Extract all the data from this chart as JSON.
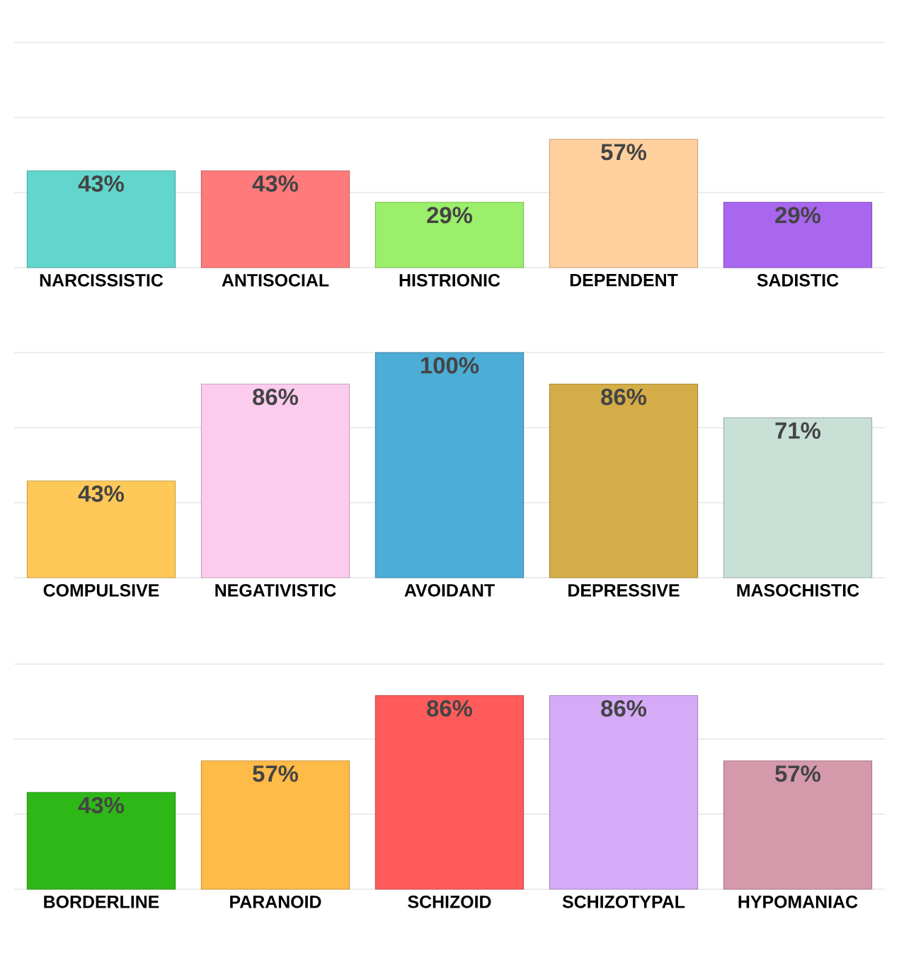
{
  "chart_data": [
    {
      "type": "bar",
      "categories": [
        "NARCISSISTIC",
        "ANTISOCIAL",
        "HISTRIONIC",
        "DEPENDENT",
        "SADISTIC"
      ],
      "values": [
        43,
        43,
        29,
        57,
        29
      ],
      "value_labels": [
        "43%",
        "43%",
        "29%",
        "57%",
        "29%"
      ],
      "colors": [
        "#62d6cc",
        "#ff7b7b",
        "#9bef6a",
        "#ffd09e",
        "#a966ef"
      ],
      "ylim": [
        0,
        100
      ],
      "yticks": [
        {
          "value": 0,
          "label": null
        },
        {
          "value": 33.33,
          "label": null
        },
        {
          "value": 66.67,
          "label": null
        },
        {
          "value": 100,
          "label": null
        }
      ],
      "grid": "y",
      "tick_labels": "x"
    },
    {
      "type": "bar",
      "categories": [
        "COMPULSIVE",
        "NEGATIVISTIC",
        "AVOIDANT",
        "DEPRESSIVE",
        "MASOCHISTIC"
      ],
      "values": [
        43,
        86,
        100,
        86,
        71
      ],
      "value_labels": [
        "43%",
        "86%",
        "100%",
        "86%",
        "71%"
      ],
      "colors": [
        "#ffc95a",
        "#fcccee",
        "#4cadd6",
        "#d4ad48",
        "#c9e0d6"
      ],
      "ylim": [
        0,
        100
      ],
      "yticks": [
        {
          "value": 0,
          "label": null
        },
        {
          "value": 33.33,
          "label": null
        },
        {
          "value": 66.67,
          "label": null
        },
        {
          "value": 100,
          "label": null
        }
      ],
      "grid": "y",
      "tick_labels": "x"
    },
    {
      "type": "bar",
      "categories": [
        "BORDERLINE",
        "PARANOID",
        "SCHIZOID",
        "SCHIZOTYPAL",
        "HYPOMANIAC"
      ],
      "values": [
        43,
        57,
        86,
        86,
        57
      ],
      "value_labels": [
        "43%",
        "57%",
        "86%",
        "86%",
        "57%"
      ],
      "colors": [
        "#2eb817",
        "#ffbb48",
        "#ff5b5b",
        "#d5abf7",
        "#d49aab"
      ],
      "ylim": [
        0,
        100
      ],
      "yticks": [
        {
          "value": 0,
          "label": null
        },
        {
          "value": 33.33,
          "label": null
        },
        {
          "value": 66.67,
          "label": null
        },
        {
          "value": 100,
          "label": null
        }
      ],
      "grid": "y",
      "tick_labels": "x"
    }
  ]
}
